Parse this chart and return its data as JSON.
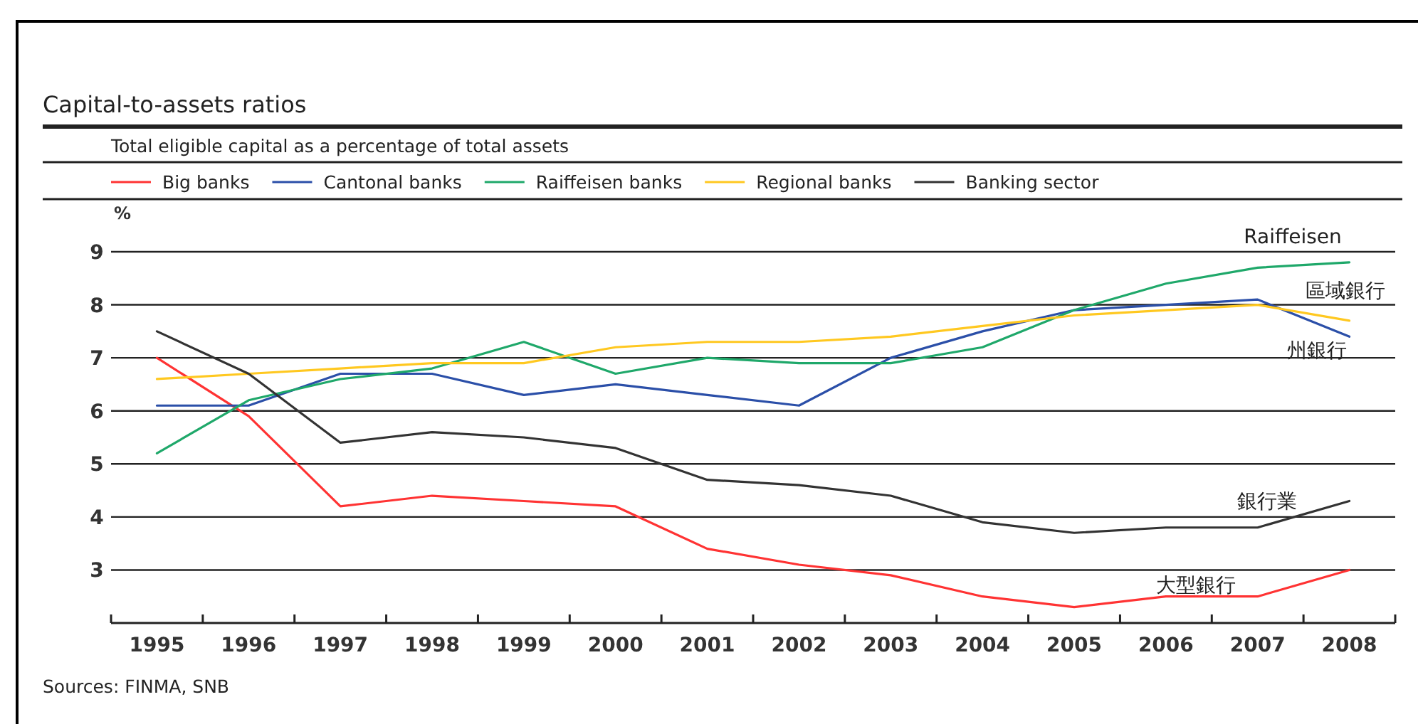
{
  "chart_data": {
    "type": "line",
    "title": "Capital-to-assets ratios",
    "subtitle": "Total eligible capital as a percentage of total assets",
    "ylabel": "%",
    "categories": [
      "1995",
      "1996",
      "1997",
      "1998",
      "1999",
      "2000",
      "2001",
      "2002",
      "2003",
      "2004",
      "2005",
      "2006",
      "2007",
      "2008"
    ],
    "series": [
      {
        "name": "Big banks",
        "color": "#ff3333",
        "values": [
          7.0,
          5.9,
          4.2,
          4.4,
          4.3,
          4.2,
          3.4,
          3.1,
          2.9,
          2.5,
          2.3,
          2.5,
          2.5,
          3.0
        ]
      },
      {
        "name": "Cantonal banks",
        "color": "#2b4fa8",
        "values": [
          6.1,
          6.1,
          6.7,
          6.7,
          6.3,
          6.5,
          6.3,
          6.1,
          7.0,
          7.5,
          7.9,
          8.0,
          8.1,
          7.4
        ]
      },
      {
        "name": "Raiffeisen banks",
        "color": "#1fa86a",
        "values": [
          5.2,
          6.2,
          6.6,
          6.8,
          7.3,
          6.7,
          7.0,
          6.9,
          6.9,
          7.2,
          7.9,
          8.4,
          8.7,
          8.8
        ]
      },
      {
        "name": "Regional banks",
        "color": "#ffc820",
        "values": [
          6.6,
          6.7,
          6.8,
          6.9,
          6.9,
          7.2,
          7.3,
          7.3,
          7.4,
          7.6,
          7.8,
          7.9,
          8.0,
          7.7
        ]
      },
      {
        "name": "Banking sector",
        "color": "#333333",
        "values": [
          7.5,
          6.7,
          5.4,
          5.6,
          5.5,
          5.3,
          4.7,
          4.6,
          4.4,
          3.9,
          3.7,
          3.8,
          3.8,
          4.3
        ]
      }
    ],
    "ylim": [
      2,
      9
    ],
    "yticks": [
      3,
      4,
      5,
      6,
      7,
      8,
      9
    ],
    "grid": "y",
    "legend": "top",
    "marker": "none",
    "line_style": "solid",
    "annotations": [
      "Raiffeisen",
      "區域銀行",
      "州銀行",
      "銀行業",
      "大型銀行",
      "Sources: FINMA, SNB"
    ]
  }
}
